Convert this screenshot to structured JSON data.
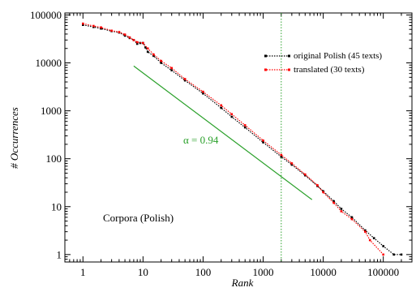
{
  "chart_data": {
    "type": "line",
    "xlabel": "Rank",
    "ylabel": "# Occurrences",
    "x_scale": "log",
    "y_scale": "log",
    "xlim": [
      0.5,
      300000
    ],
    "ylim": [
      0.7,
      110000
    ],
    "x_ticks": [
      "1",
      "10",
      "100",
      "1000",
      "10000",
      "100000"
    ],
    "y_ticks": [
      "1",
      "10",
      "100",
      "1000",
      "10000",
      "100000"
    ],
    "x_tick_values": [
      1,
      10,
      100,
      1000,
      10000,
      100000
    ],
    "y_tick_values": [
      1,
      10,
      100,
      1000,
      10000,
      100000
    ],
    "legend_position": "top-right",
    "series": [
      {
        "name": "original Polish  (45 texts)",
        "color": "#000000",
        "style": "dotted-markers",
        "x": [
          1,
          1.5,
          2,
          3,
          4,
          5,
          6,
          7,
          8,
          9,
          10,
          11,
          12,
          15,
          20,
          30,
          50,
          100,
          200,
          300,
          500,
          1000,
          2000,
          3000,
          5000,
          8000,
          10000,
          15000,
          20000,
          30000,
          50000,
          70000,
          100000,
          150000,
          200000
        ],
        "y": [
          62000,
          56000,
          52000,
          46000,
          43000,
          37000,
          33000,
          30000,
          25000,
          26000,
          26000,
          21000,
          17000,
          14000,
          10000,
          7000,
          4300,
          2300,
          1150,
          750,
          450,
          220,
          110,
          75,
          45,
          27,
          21,
          13,
          9,
          6,
          3.2,
          2.2,
          1.5,
          1,
          1
        ]
      },
      {
        "name": "translated  (30 texts)",
        "color": "#ff0000",
        "style": "dotted-markers",
        "x": [
          1,
          1.5,
          2,
          3,
          4,
          5,
          6,
          7,
          8,
          10,
          12,
          15,
          20,
          30,
          50,
          100,
          200,
          300,
          500,
          1000,
          2000,
          3000,
          5000,
          8000,
          10000,
          15000,
          20000,
          30000,
          50000,
          60000,
          100000
        ],
        "y": [
          66000,
          59000,
          55000,
          47000,
          44000,
          39000,
          34000,
          30000,
          27000,
          26000,
          20000,
          15000,
          11000,
          7800,
          4600,
          2500,
          1300,
          850,
          500,
          240,
          120,
          80,
          47,
          28,
          20,
          12,
          8,
          5.5,
          3,
          2,
          1
        ]
      }
    ],
    "reference_line": {
      "label": "α = 0.94",
      "slope": -0.94,
      "color": "#2aa02a",
      "x": [
        7,
        6500
      ],
      "y": [
        8600,
        14
      ]
    },
    "vertical_line": {
      "x": 2000,
      "color": "#2aa02a",
      "style": "dotted"
    },
    "annotation": "Corpora  (Polish)"
  }
}
